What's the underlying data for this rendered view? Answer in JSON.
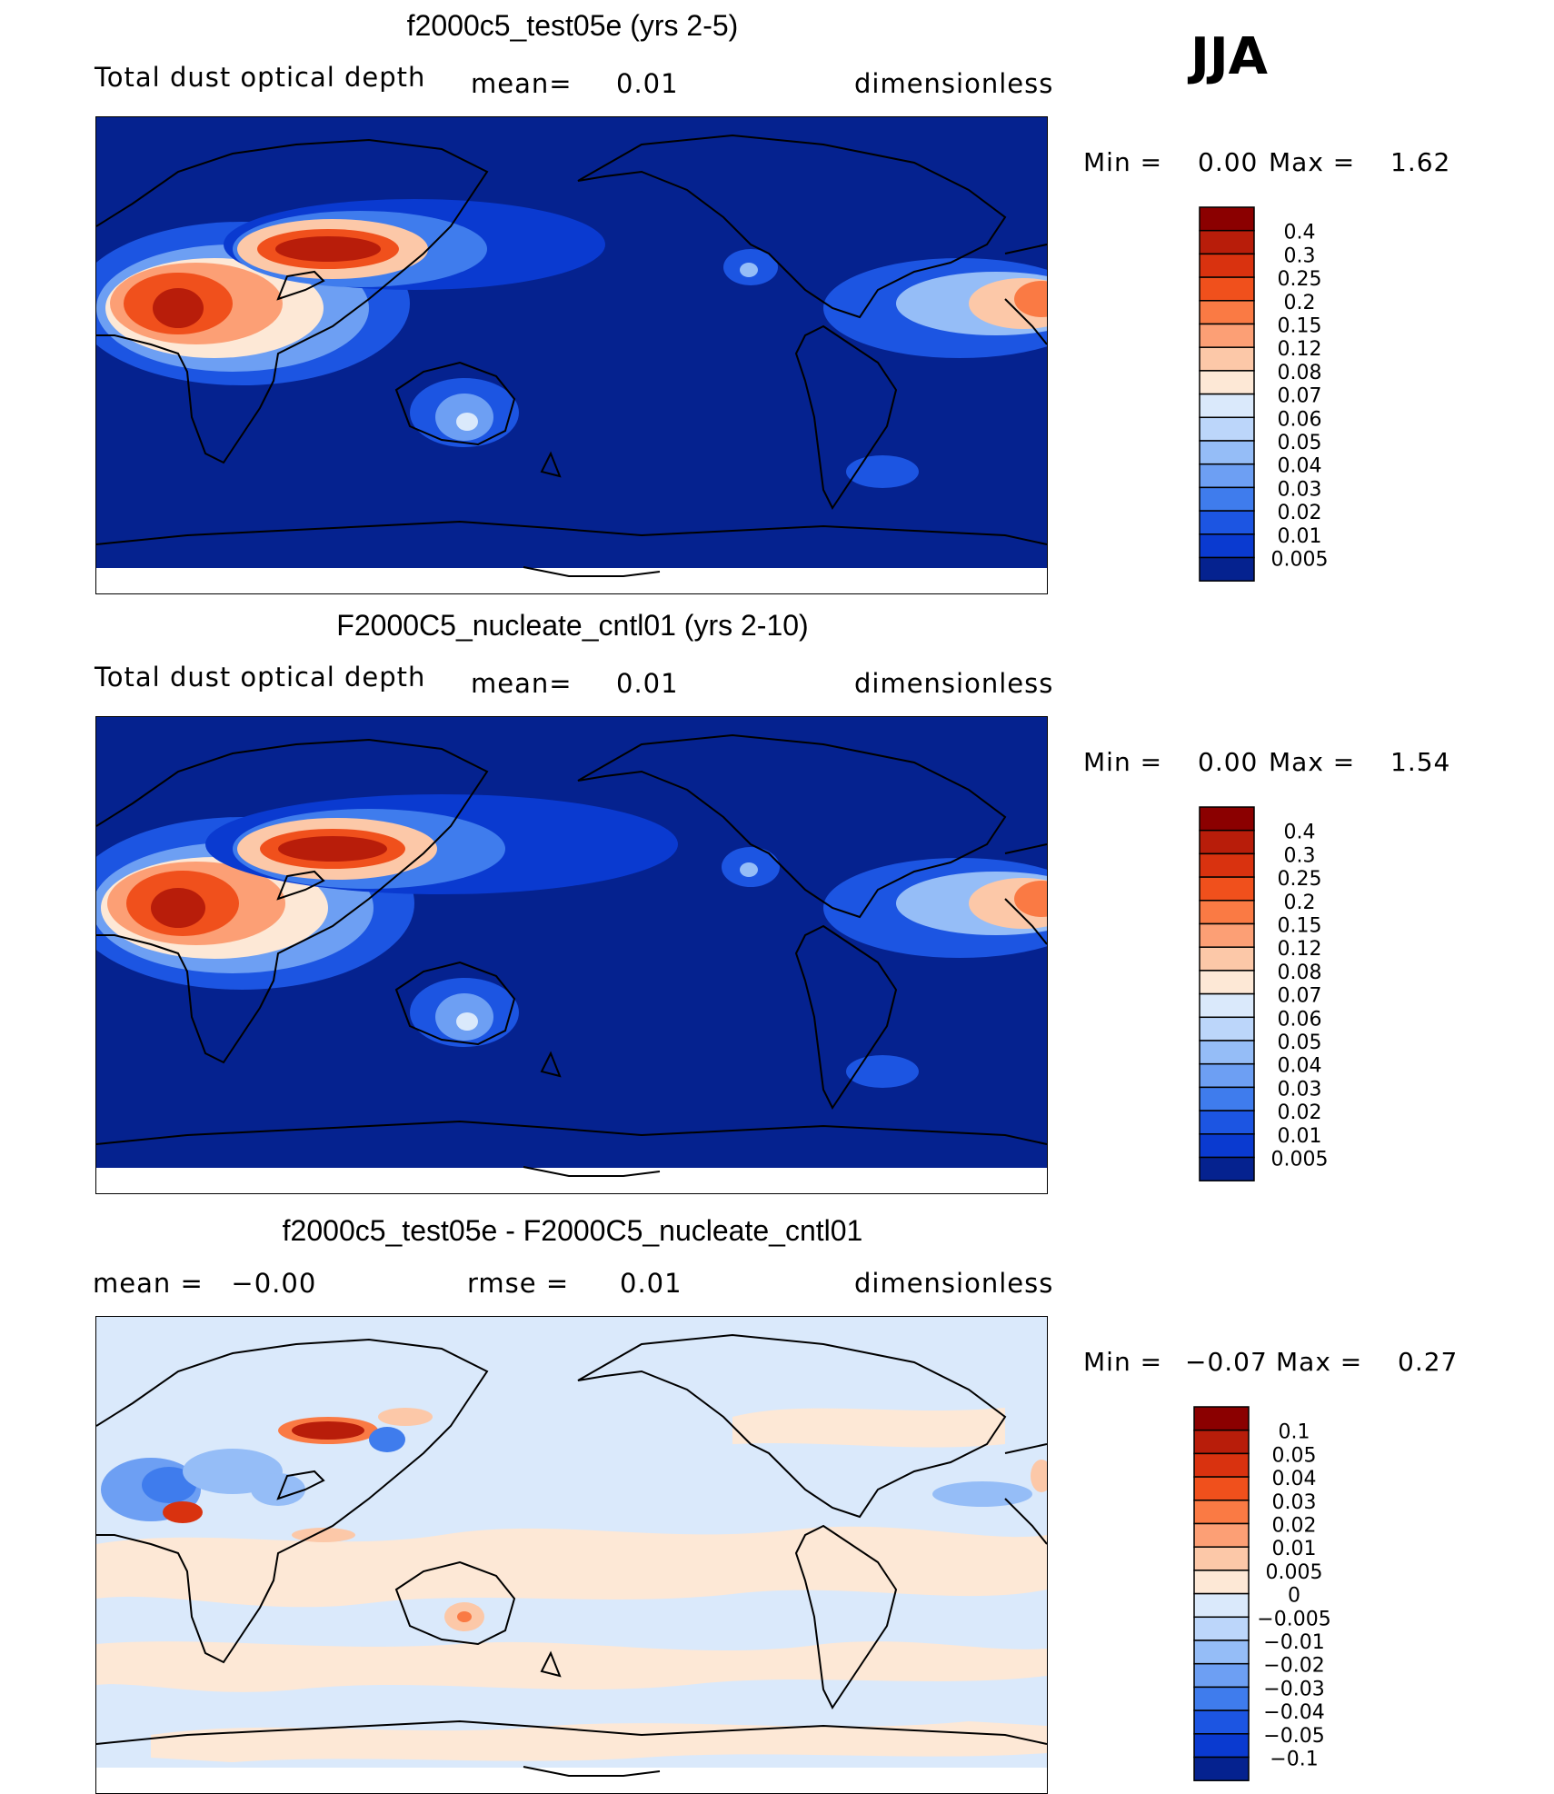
{
  "season": "JJA",
  "panels": [
    {
      "title": "f2000c5_test05e (yrs 2-5)",
      "left_text": "Total dust optical depth",
      "mid_label": "mean=",
      "mid_value": "0.01",
      "units": "dimensionless",
      "min_label": "Min =",
      "min_value": "0.00",
      "max_label": "Max =",
      "max_value": "1.62",
      "colorbar": {
        "labels": [
          "0.4",
          "0.3",
          "0.25",
          "0.2",
          "0.15",
          "0.12",
          "0.08",
          "0.07",
          "0.06",
          "0.05",
          "0.04",
          "0.03",
          "0.02",
          "0.01",
          "0.005"
        ],
        "colors": [
          "#8b0000",
          "#b81d0a",
          "#d9320f",
          "#f0501c",
          "#fa7a44",
          "#fc9f75",
          "#fcc8a8",
          "#fde8d6",
          "#dae9fb",
          "#bcd6fa",
          "#95bdf7",
          "#6d9ff3",
          "#3f7ced",
          "#1c55e2",
          "#0a3ad0",
          "#05228f"
        ]
      },
      "chart_data": {
        "type": "heatmap",
        "title": "f2000c5_test05e (yrs 2-5)",
        "variable": "Total dust optical depth",
        "units": "dimensionless",
        "mean": 0.01,
        "min": 0.0,
        "max": 1.62,
        "levels": [
          0.005,
          0.01,
          0.02,
          0.03,
          0.04,
          0.05,
          0.06,
          0.07,
          0.08,
          0.12,
          0.15,
          0.2,
          0.25,
          0.3,
          0.4
        ]
      }
    },
    {
      "title": "F2000C5_nucleate_cntl01 (yrs 2-10)",
      "left_text": "Total dust optical depth",
      "mid_label": "mean=",
      "mid_value": "0.01",
      "units": "dimensionless",
      "min_label": "Min =",
      "min_value": "0.00",
      "max_label": "Max =",
      "max_value": "1.54",
      "colorbar": {
        "labels": [
          "0.4",
          "0.3",
          "0.25",
          "0.2",
          "0.15",
          "0.12",
          "0.08",
          "0.07",
          "0.06",
          "0.05",
          "0.04",
          "0.03",
          "0.02",
          "0.01",
          "0.005"
        ],
        "colors": [
          "#8b0000",
          "#b81d0a",
          "#d9320f",
          "#f0501c",
          "#fa7a44",
          "#fc9f75",
          "#fcc8a8",
          "#fde8d6",
          "#dae9fb",
          "#bcd6fa",
          "#95bdf7",
          "#6d9ff3",
          "#3f7ced",
          "#1c55e2",
          "#0a3ad0",
          "#05228f"
        ]
      },
      "chart_data": {
        "type": "heatmap",
        "title": "F2000C5_nucleate_cntl01 (yrs 2-10)",
        "variable": "Total dust optical depth",
        "units": "dimensionless",
        "mean": 0.01,
        "min": 0.0,
        "max": 1.54,
        "levels": [
          0.005,
          0.01,
          0.02,
          0.03,
          0.04,
          0.05,
          0.06,
          0.07,
          0.08,
          0.12,
          0.15,
          0.2,
          0.25,
          0.3,
          0.4
        ]
      }
    },
    {
      "title": "f2000c5_test05e - F2000C5_nucleate_cntl01",
      "left_text": "mean =   −0.00",
      "mid_label": "rmse =",
      "mid_value": "0.01",
      "units": "dimensionless",
      "min_label": "Min =",
      "min_value": "−0.07",
      "max_label": "Max =",
      "max_value": "0.27",
      "colorbar": {
        "labels": [
          "0.1",
          "0.05",
          "0.04",
          "0.03",
          "0.02",
          "0.01",
          "0.005",
          "0",
          "−0.005",
          "−0.01",
          "−0.02",
          "−0.03",
          "−0.04",
          "−0.05",
          "−0.1"
        ],
        "colors": [
          "#8b0000",
          "#b81d0a",
          "#d9320f",
          "#f0501c",
          "#fa7a44",
          "#fc9f75",
          "#fcc8a8",
          "#fde8d6",
          "#dae9fb",
          "#bcd6fa",
          "#95bdf7",
          "#6d9ff3",
          "#3f7ced",
          "#1c55e2",
          "#0a3ad0",
          "#05228f"
        ]
      },
      "chart_data": {
        "type": "heatmap",
        "title": "f2000c5_test05e - F2000C5_nucleate_cntl01",
        "units": "dimensionless",
        "mean": -0.0,
        "rmse": 0.01,
        "min": -0.07,
        "max": 0.27,
        "levels": [
          -0.1,
          -0.05,
          -0.04,
          -0.03,
          -0.02,
          -0.01,
          -0.005,
          0,
          0.005,
          0.01,
          0.02,
          0.03,
          0.04,
          0.05,
          0.1
        ]
      }
    }
  ]
}
